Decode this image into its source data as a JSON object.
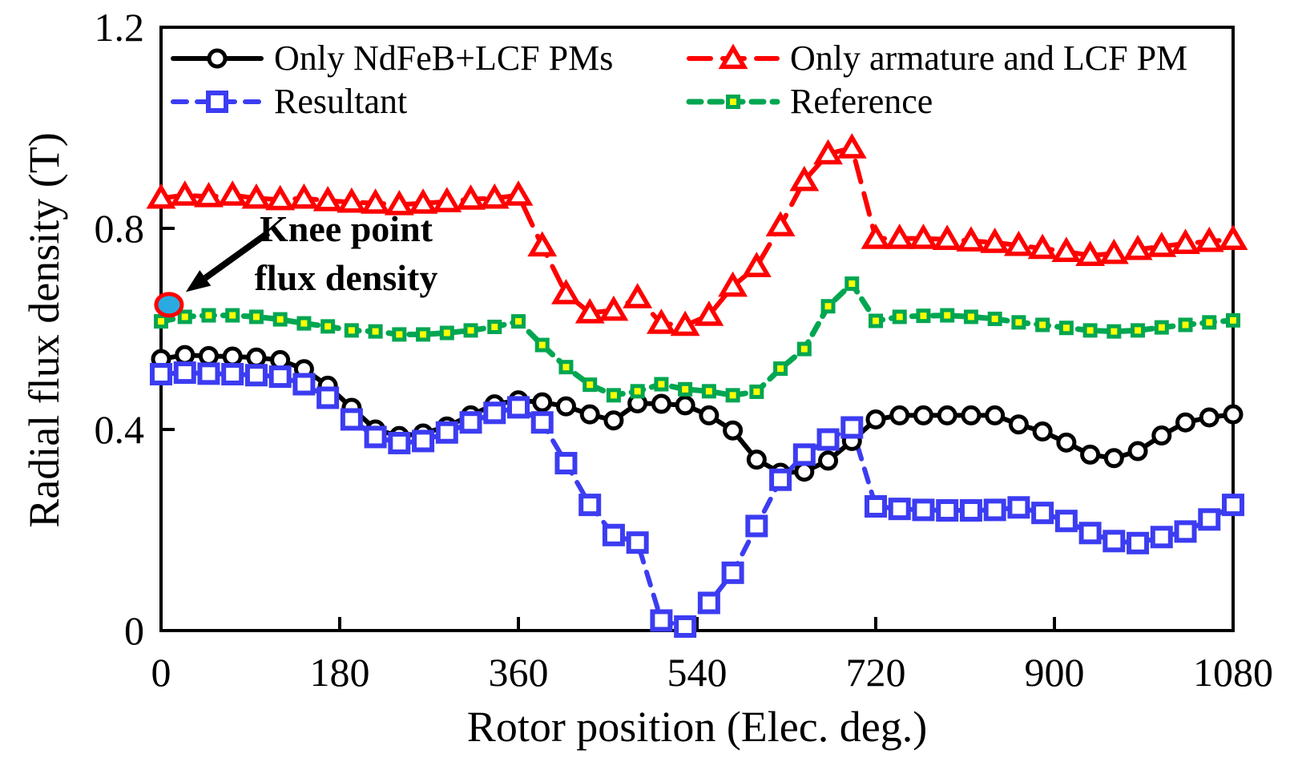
{
  "chart_data": {
    "type": "line",
    "title": "",
    "xlabel": "Rotor position (Elec. deg.)",
    "ylabel": "Radial flux density (T)",
    "xlim": [
      0,
      1080
    ],
    "ylim": [
      0,
      1.2
    ],
    "x_ticks": [
      "0",
      "180",
      "360",
      "540",
      "720",
      "900",
      "1080"
    ],
    "x_tick_values": [
      0,
      180,
      360,
      540,
      720,
      900,
      1080
    ],
    "y_ticks": [
      "0",
      "0.4",
      "0.8",
      "1.2"
    ],
    "y_tick_values": [
      0,
      0.4,
      0.8,
      1.2
    ],
    "grid": "off",
    "legend_position": "top-inside",
    "x": [
      0,
      24,
      48,
      72,
      96,
      120,
      144,
      168,
      192,
      216,
      240,
      264,
      288,
      312,
      336,
      360,
      384,
      408,
      432,
      456,
      480,
      504,
      528,
      552,
      576,
      600,
      624,
      648,
      672,
      696,
      720,
      744,
      768,
      792,
      816,
      840,
      864,
      888,
      912,
      936,
      960,
      984,
      1008,
      1032,
      1056,
      1080
    ],
    "series": [
      {
        "name": "Only NdFeB+LCF PMs",
        "color": "#000000",
        "line": "solid",
        "marker": "circle",
        "values": [
          0.54,
          0.548,
          0.546,
          0.545,
          0.543,
          0.538,
          0.52,
          0.487,
          0.443,
          0.4,
          0.387,
          0.392,
          0.406,
          0.428,
          0.45,
          0.458,
          0.454,
          0.446,
          0.43,
          0.418,
          0.452,
          0.451,
          0.448,
          0.428,
          0.398,
          0.34,
          0.314,
          0.316,
          0.338,
          0.377,
          0.42,
          0.428,
          0.428,
          0.428,
          0.428,
          0.428,
          0.41,
          0.396,
          0.374,
          0.35,
          0.343,
          0.357,
          0.388,
          0.414,
          0.424,
          0.43
        ]
      },
      {
        "name": "Resultant",
        "color": "#3C3CF2",
        "line": "dashed",
        "marker": "square",
        "values": [
          0.51,
          0.513,
          0.511,
          0.51,
          0.508,
          0.505,
          0.49,
          0.463,
          0.42,
          0.385,
          0.373,
          0.377,
          0.394,
          0.414,
          0.433,
          0.444,
          0.414,
          0.333,
          0.25,
          0.19,
          0.175,
          0.02,
          0.008,
          0.055,
          0.115,
          0.208,
          0.3,
          0.35,
          0.38,
          0.404,
          0.247,
          0.242,
          0.24,
          0.239,
          0.239,
          0.24,
          0.245,
          0.234,
          0.218,
          0.194,
          0.178,
          0.174,
          0.186,
          0.197,
          0.221,
          0.25
        ]
      },
      {
        "name": "Only armature and LCF PM",
        "color": "#FF0000",
        "line": "dashed",
        "marker": "triangle",
        "values": [
          0.86,
          0.866,
          0.863,
          0.866,
          0.86,
          0.857,
          0.86,
          0.855,
          0.852,
          0.85,
          0.847,
          0.85,
          0.853,
          0.858,
          0.86,
          0.866,
          0.765,
          0.67,
          0.632,
          0.637,
          0.662,
          0.611,
          0.607,
          0.627,
          0.685,
          0.724,
          0.805,
          0.895,
          0.948,
          0.96,
          0.78,
          0.78,
          0.78,
          0.778,
          0.775,
          0.772,
          0.766,
          0.76,
          0.754,
          0.746,
          0.75,
          0.758,
          0.764,
          0.77,
          0.774,
          0.778
        ]
      },
      {
        "name": "Reference",
        "color": "#00A651",
        "line": "dashed",
        "marker": "square-dot",
        "marker_fill": "#FFFF00",
        "values": [
          0.615,
          0.624,
          0.627,
          0.627,
          0.624,
          0.619,
          0.611,
          0.605,
          0.597,
          0.595,
          0.589,
          0.589,
          0.592,
          0.597,
          0.604,
          0.615,
          0.568,
          0.524,
          0.489,
          0.468,
          0.476,
          0.49,
          0.48,
          0.476,
          0.468,
          0.475,
          0.521,
          0.56,
          0.645,
          0.69,
          0.616,
          0.624,
          0.626,
          0.627,
          0.624,
          0.62,
          0.613,
          0.608,
          0.602,
          0.597,
          0.595,
          0.597,
          0.603,
          0.608,
          0.613,
          0.617
        ]
      }
    ],
    "annotation": {
      "line1": "Knee point",
      "line2": "flux density",
      "point": {
        "x": 8,
        "y": 0.648
      },
      "point_fill": "#29ABE2",
      "point_edge": "#FF0000"
    }
  }
}
